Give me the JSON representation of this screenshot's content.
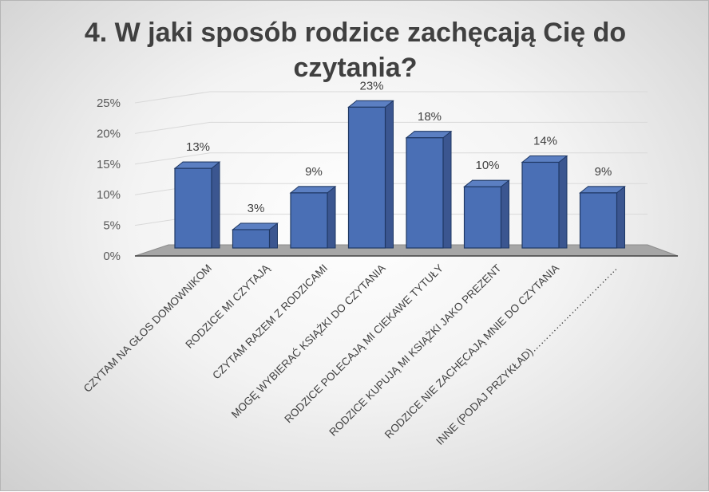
{
  "chart_data": {
    "type": "bar",
    "title_lines": [
      "4. W jaki sposób rodzice zachęcają Cię do",
      "czytania?"
    ],
    "categories": [
      "CZYTAM NA GŁOS DOMOWNIKOM",
      "RODZICE MI CZYTAJĄ",
      "CZYTAM RAZEM Z RODZICAMI",
      "MOGĘ WYBIERAĆ KSIĄŻKI DO CZYTANIA",
      "RODZICE POLECAJĄ MI CIEKAWE TYTUŁY",
      "RODZICE KUPUJĄ MI KSIĄŻKI JAKO PREZENT",
      "RODZICE NIE ZACHĘCAJĄ MNIE DO CZYTANIA",
      "INNE (PODAJ PRZYKŁAD)……………………………"
    ],
    "values": [
      13,
      3,
      9,
      23,
      18,
      10,
      14,
      9
    ],
    "value_labels": [
      "13%",
      "3%",
      "9%",
      "23%",
      "18%",
      "10%",
      "14%",
      "9%"
    ],
    "yticks": [
      "0%",
      "5%",
      "10%",
      "15%",
      "20%",
      "25%"
    ],
    "ylim": [
      0,
      25
    ],
    "colors": {
      "bar": "#4a6fb5",
      "bar_side": "#3b5690",
      "bar_outline": "#1f3864",
      "floor": "#a6a6a6"
    }
  }
}
